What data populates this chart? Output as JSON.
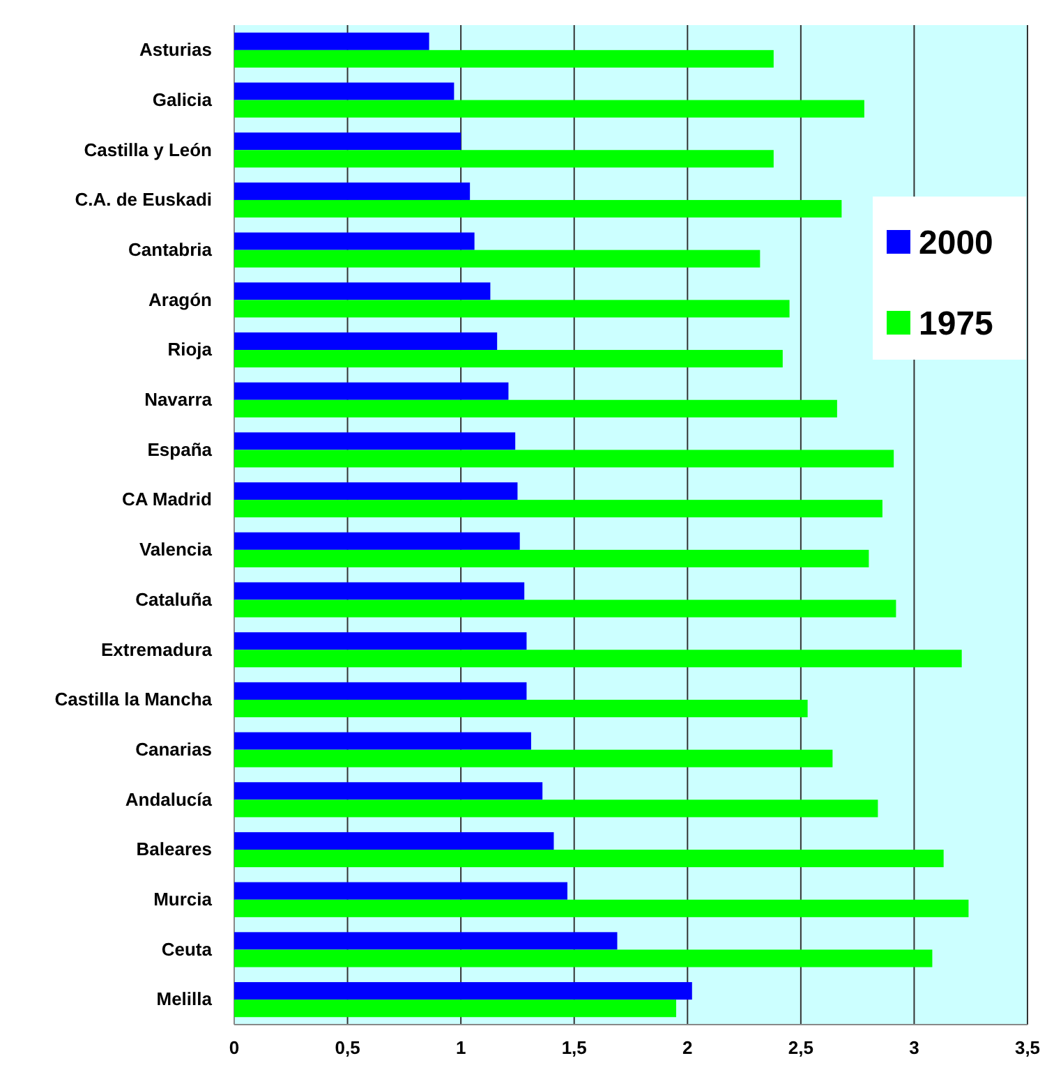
{
  "chart_data": {
    "type": "bar",
    "orientation": "horizontal",
    "categories": [
      "Asturias",
      "Galicia",
      "Castilla y León",
      "C.A. de Euskadi",
      "Cantabria",
      "Aragón",
      "Rioja",
      "Navarra",
      "España",
      "CA Madrid",
      "Valencia",
      "Cataluña",
      "Extremadura",
      "Castilla la Mancha",
      "Canarias",
      "Andalucía",
      "Baleares",
      "Murcia",
      "Ceuta",
      "Melilla"
    ],
    "series": [
      {
        "name": "2000",
        "color": "#0000ff",
        "values": [
          0.86,
          0.97,
          1.0,
          1.04,
          1.06,
          1.13,
          1.16,
          1.21,
          1.24,
          1.25,
          1.26,
          1.28,
          1.29,
          1.29,
          1.31,
          1.36,
          1.41,
          1.47,
          1.69,
          2.02
        ]
      },
      {
        "name": "1975",
        "color": "#00ff00",
        "values": [
          2.38,
          2.78,
          2.38,
          2.68,
          2.32,
          2.45,
          2.42,
          2.66,
          2.91,
          2.86,
          2.8,
          2.92,
          3.21,
          2.53,
          2.64,
          2.84,
          3.13,
          3.24,
          3.08,
          1.95
        ]
      }
    ],
    "xlim": [
      0,
      3.5
    ],
    "xticks": [
      0,
      {
        "value": 0.5,
        "label": "0,5"
      },
      1,
      {
        "value": 1.5,
        "label": "1,5"
      },
      2,
      {
        "value": 2.5,
        "label": "2,5"
      },
      3,
      {
        "value": 3.5,
        "label": "3,5"
      }
    ],
    "grid": "x",
    "legend": "right"
  }
}
